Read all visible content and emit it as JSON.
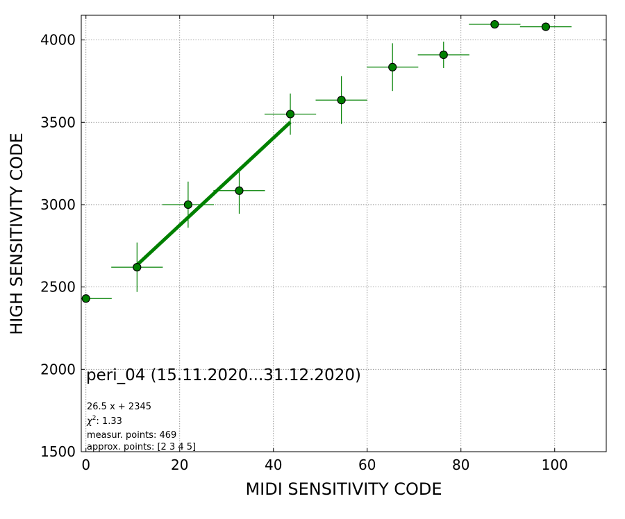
{
  "chart_data": {
    "type": "scatter",
    "xlabel": "MIDI SENSITIVITY CODE",
    "ylabel": "HIGH SENSITIVITY CODE",
    "xlim": [
      -1,
      111
    ],
    "ylim": [
      1500,
      4150
    ],
    "xticks": [
      0,
      20,
      40,
      60,
      80,
      100
    ],
    "yticks": [
      1500,
      2000,
      2500,
      3000,
      3500,
      4000
    ],
    "grid": true,
    "points": [
      {
        "x": 0,
        "y": 2430,
        "xerr": 5.5,
        "yerr": 0
      },
      {
        "x": 10.9,
        "y": 2620,
        "xerr": 5.5,
        "yerr": 150
      },
      {
        "x": 21.8,
        "y": 3000,
        "xerr": 5.5,
        "yerr": 140
      },
      {
        "x": 32.7,
        "y": 3085,
        "xerr": 5.5,
        "yerr": 140
      },
      {
        "x": 43.6,
        "y": 3550,
        "xerr": 5.5,
        "yerr": 125
      },
      {
        "x": 54.5,
        "y": 3635,
        "xerr": 5.5,
        "yerr": 145
      },
      {
        "x": 65.4,
        "y": 3835,
        "xerr": 5.5,
        "yerr": 145
      },
      {
        "x": 76.3,
        "y": 3910,
        "xerr": 5.5,
        "yerr": 80
      },
      {
        "x": 87.2,
        "y": 4095,
        "xerr": 5.5,
        "yerr": 0
      },
      {
        "x": 98.1,
        "y": 4080,
        "xerr": 5.5,
        "yerr": 0
      }
    ],
    "fit_line": {
      "slope": 26.5,
      "intercept": 2345,
      "x_start": 10.9,
      "x_end": 43.6
    },
    "annotation": {
      "title": "peri_04 (15.11.2020...31.12.2020)",
      "equation": "26.5 x + 2345",
      "chi2_label": "χ",
      "chi2_sup": "2",
      "chi2_value": ": 1.33",
      "measured": "measur. points: 469",
      "approx": "approx. points: [2 3 4 5]"
    },
    "colors": {
      "marker": "#008000",
      "marker_edge": "#000000",
      "errorbar": "#008000",
      "fit": "#008000",
      "grid": "#808080"
    }
  }
}
